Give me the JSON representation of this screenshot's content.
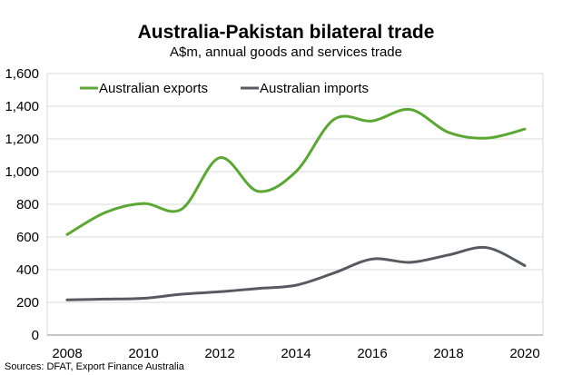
{
  "chart_data": {
    "type": "line",
    "title": "Australia-Pakistan bilateral trade",
    "subtitle": "A$m, annual goods and services trade",
    "source": "Sources: DFAT, Export Finance Australia",
    "x": [
      2008,
      2009,
      2010,
      2011,
      2012,
      2013,
      2014,
      2015,
      2016,
      2017,
      2018,
      2019,
      2020
    ],
    "xticks": [
      "2008",
      "2010",
      "2012",
      "2014",
      "2016",
      "2018",
      "2020"
    ],
    "yticks": [
      "0",
      "200",
      "400",
      "600",
      "800",
      "1,000",
      "1,200",
      "1,400",
      "1,600"
    ],
    "ylim": [
      0,
      1600
    ],
    "xlim": [
      2008,
      2020
    ],
    "grid": true,
    "legend_position": "top-left",
    "series": [
      {
        "name": "Australian exports",
        "color": "#5aa832",
        "values": [
          615,
          750,
          805,
          770,
          1085,
          880,
          1000,
          1320,
          1310,
          1380,
          1240,
          1205,
          1260
        ]
      },
      {
        "name": "Australian imports",
        "color": "#575b61",
        "values": [
          215,
          220,
          225,
          250,
          265,
          285,
          305,
          380,
          465,
          445,
          490,
          535,
          425
        ]
      }
    ]
  }
}
